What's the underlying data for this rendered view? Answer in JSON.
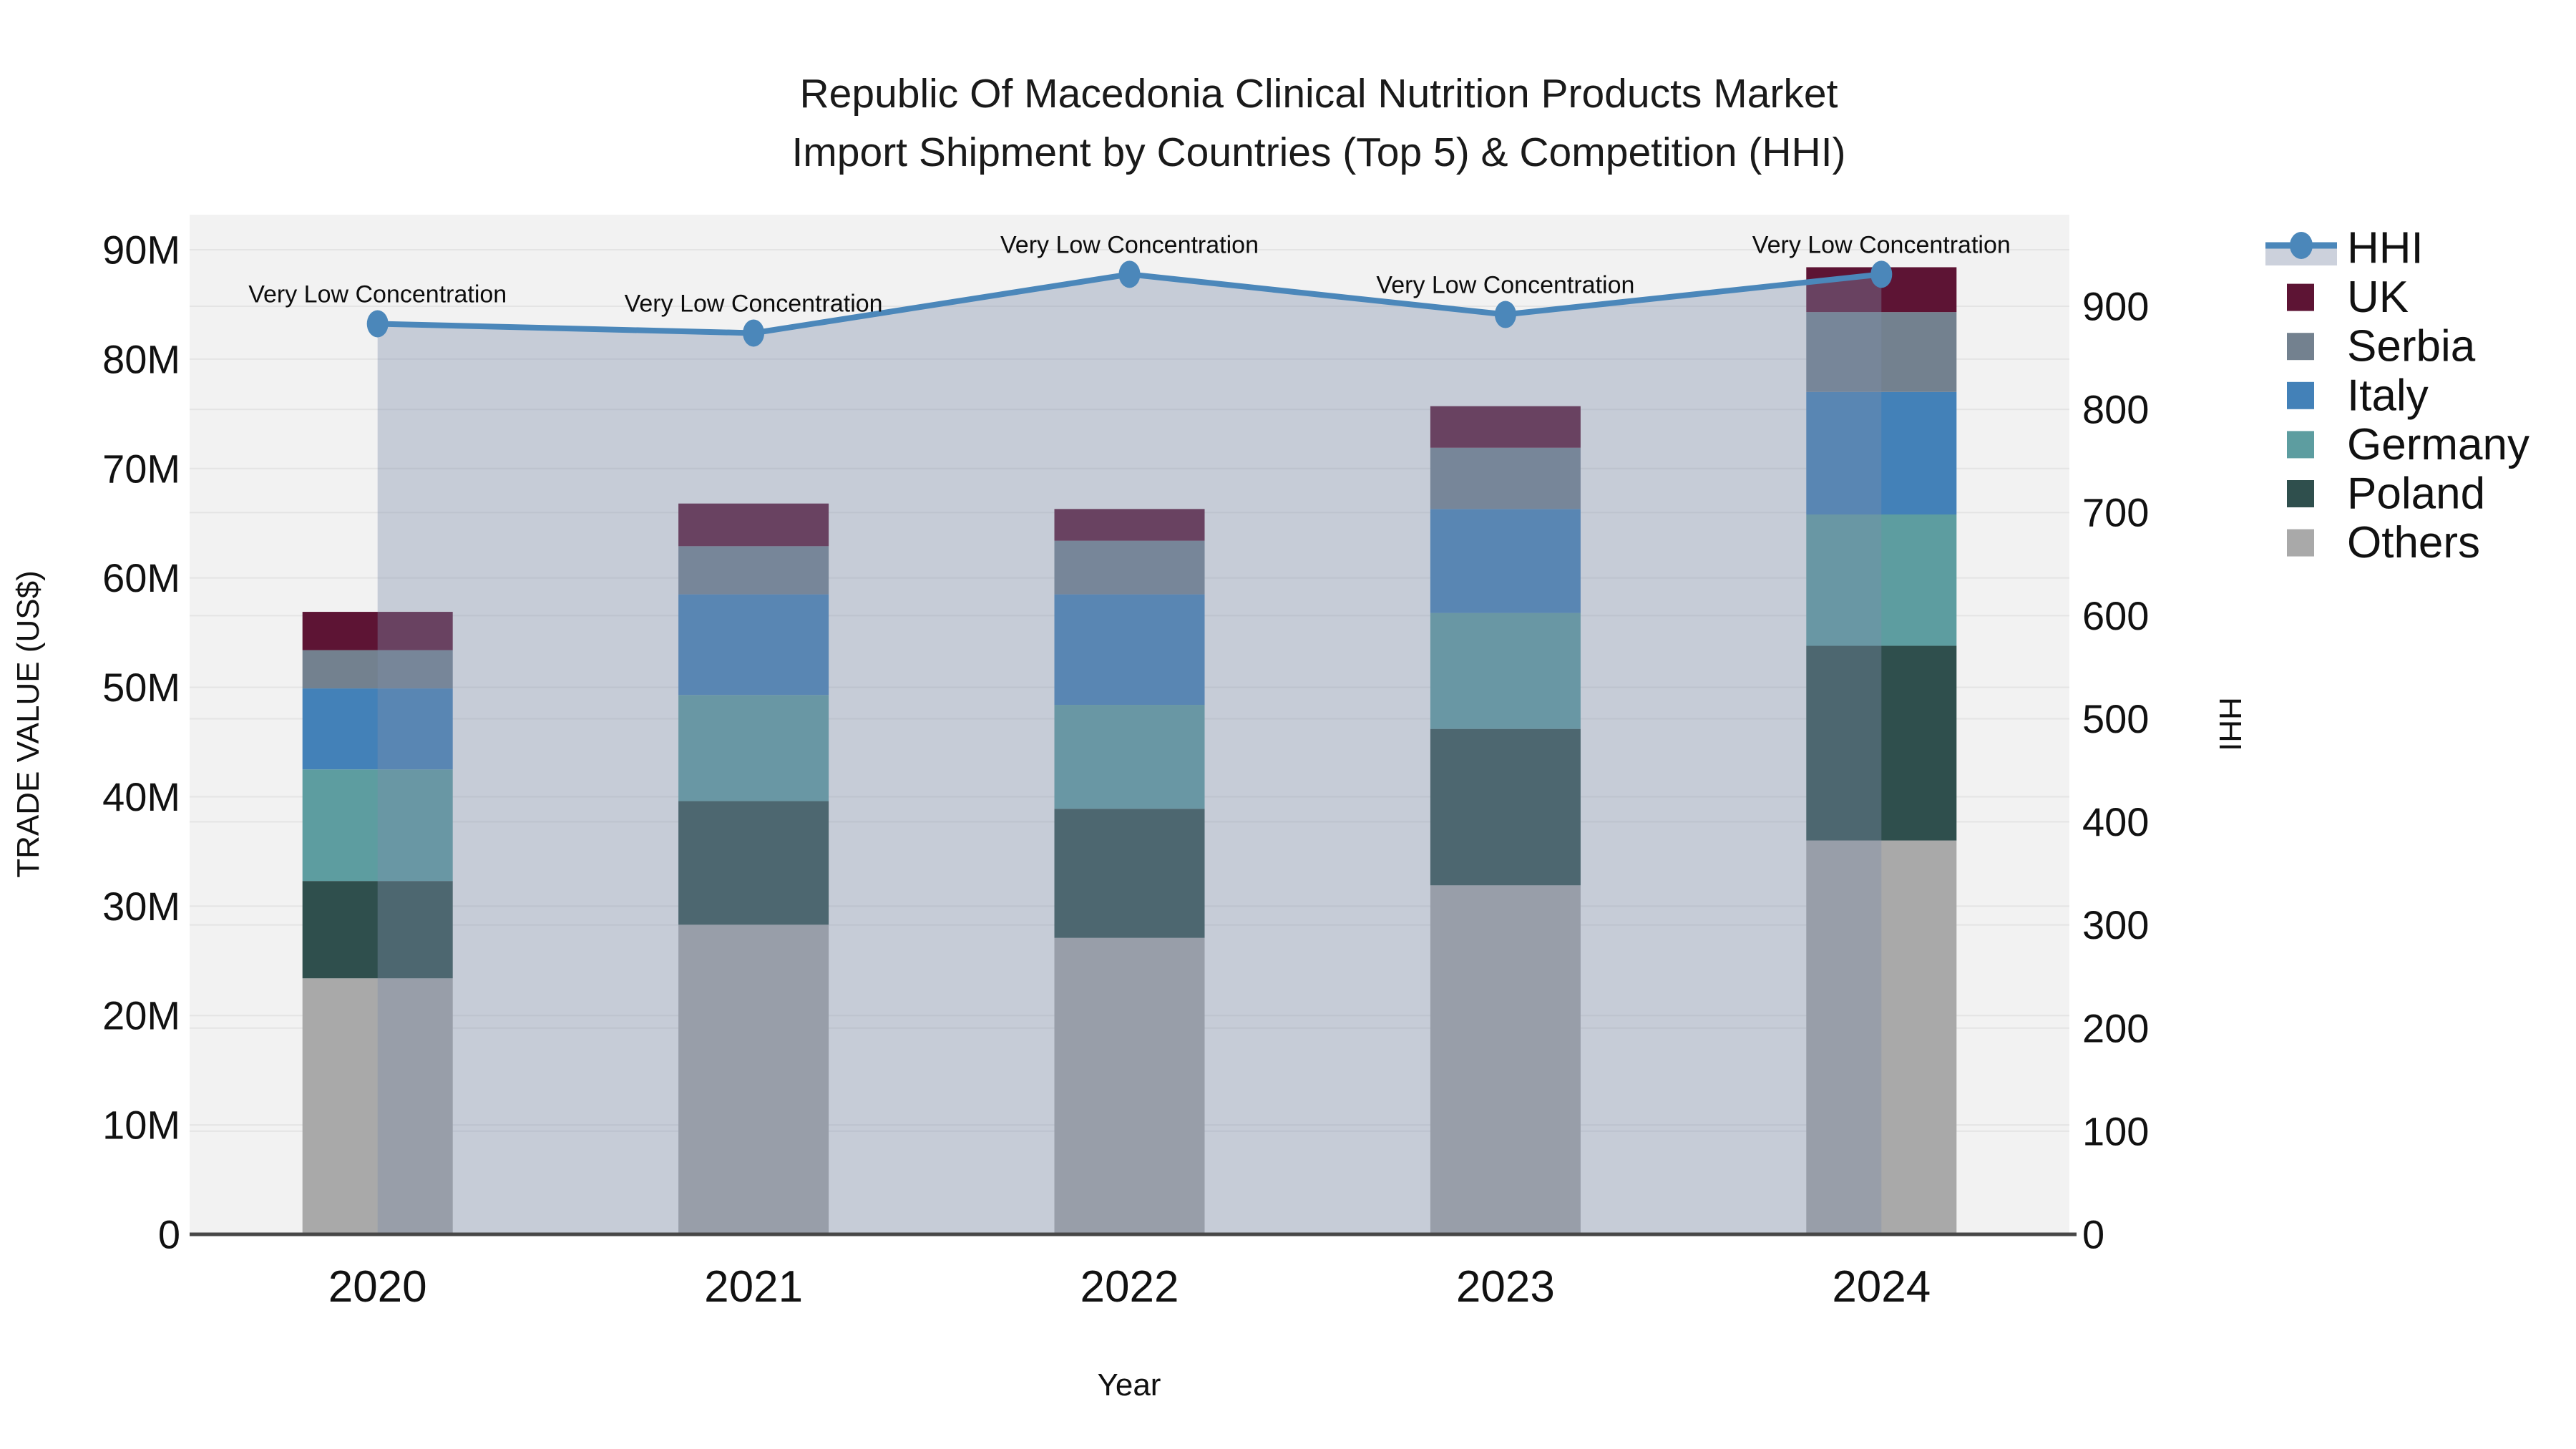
{
  "title": {
    "line1": "Republic Of Macedonia Clinical Nutrition Products Market",
    "line2": "Import Shipment by Countries (Top 5) & Competition (HHI)"
  },
  "axes": {
    "left_title": "TRADE VALUE (US$)",
    "right_title": "HHI",
    "x_title": "Year",
    "left_tick_labels": [
      "0",
      "10M",
      "20M",
      "30M",
      "40M",
      "50M",
      "60M",
      "70M",
      "80M",
      "90M"
    ],
    "right_tick_labels": [
      "0",
      "100",
      "200",
      "300",
      "400",
      "500",
      "600",
      "700",
      "800",
      "900"
    ]
  },
  "legend": {
    "items": [
      "HHI",
      "UK",
      "Serbia",
      "Italy",
      "Germany",
      "Poland",
      "Others"
    ]
  },
  "chart_data": {
    "type": "bar+line",
    "title": "Republic Of Macedonia Clinical Nutrition Products Market Import Shipment by Countries (Top 5) & Competition (HHI)",
    "xlabel": "Year",
    "ylabel_left": "TRADE VALUE (US$)",
    "ylabel_right": "HHI",
    "categories": [
      "2020",
      "2021",
      "2022",
      "2023",
      "2024"
    ],
    "unit": "M US$",
    "stack_series_bottom_up": [
      {
        "name": "Others",
        "color": "#a9a9a9",
        "values": [
          23.4,
          28.3,
          27.1,
          31.9,
          36.0
        ]
      },
      {
        "name": "Poland",
        "color": "#2f4f4d",
        "values": [
          8.9,
          11.3,
          11.8,
          14.3,
          17.8
        ]
      },
      {
        "name": "Germany",
        "color": "#5d9da0",
        "values": [
          10.2,
          9.7,
          9.5,
          10.6,
          12.0
        ]
      },
      {
        "name": "Italy",
        "color": "#4381b8",
        "values": [
          7.4,
          9.2,
          10.1,
          9.5,
          11.2
        ]
      },
      {
        "name": "Serbia",
        "color": "#73818f",
        "values": [
          3.5,
          4.4,
          4.9,
          5.6,
          7.3
        ]
      },
      {
        "name": "UK",
        "color": "#5d1434",
        "values": [
          3.5,
          3.9,
          2.9,
          3.8,
          4.1
        ]
      }
    ],
    "bar_totals": [
      56.9,
      66.8,
      66.3,
      75.7,
      88.4
    ],
    "line_series": {
      "name": "HHI",
      "color": "#4b87ba",
      "area_fill": "rgba(127,142,171,0.38)",
      "values": [
        883,
        874,
        931,
        892,
        931
      ],
      "annotations": [
        "Very Low Concentration",
        "Very Low Concentration",
        "Very Low Concentration",
        "Very Low Concentration",
        "Very Low Concentration"
      ]
    },
    "left_axis": {
      "ticks": [
        0,
        10,
        20,
        30,
        40,
        50,
        60,
        70,
        80,
        90
      ],
      "tick_unit": "M",
      "range_max": 93.2
    },
    "right_axis": {
      "ticks": [
        0,
        100,
        200,
        300,
        400,
        500,
        600,
        700,
        800,
        900
      ],
      "range_max": 989
    },
    "grid": true,
    "legend_position": "right"
  }
}
